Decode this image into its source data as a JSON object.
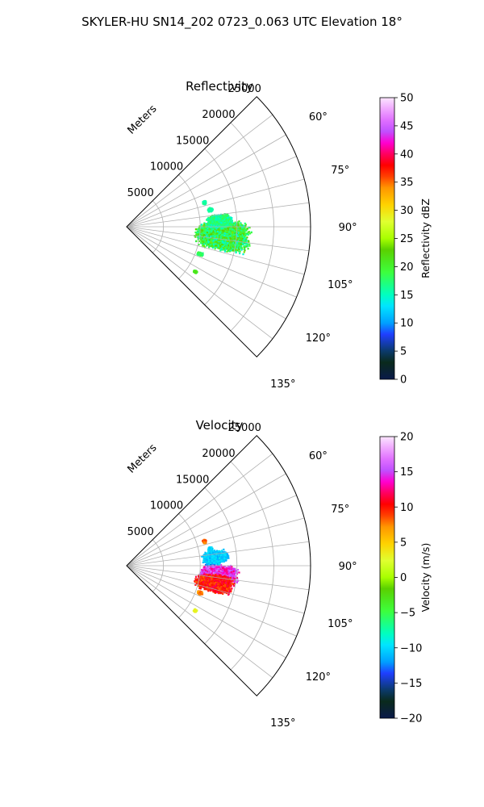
{
  "figure": {
    "suptitle": "SKYLER-HU  SN14_202  0723_0.063 UTC Elevation 18°"
  },
  "chart_data": [
    {
      "type": "polar_radar_sector",
      "title": "Reflectivity",
      "field": "reflectivity",
      "theta_range_deg": [
        45,
        135
      ],
      "radius_max_m": 25000,
      "theta_ticks_deg": [
        60,
        75,
        90,
        105,
        120,
        135
      ],
      "theta_tick_labels": [
        "60°",
        "75°",
        "90°",
        "105°",
        "120°",
        "135°"
      ],
      "r_ticks_m": [
        5000,
        10000,
        15000,
        20000,
        25000
      ],
      "r_tick_labels": [
        "5000",
        "10000",
        "15000",
        "20000",
        "25000"
      ],
      "r_axis_label": "Meters",
      "grid": true,
      "colorbar": {
        "label": "Reflectivity dBZ",
        "vmin": 0,
        "vmax": 50,
        "ticks": [
          0,
          5,
          10,
          15,
          20,
          25,
          30,
          35,
          40,
          45,
          50
        ],
        "tick_labels": [
          "0",
          "5",
          "10",
          "15",
          "20",
          "25",
          "30",
          "35",
          "40",
          "45",
          "50"
        ]
      },
      "echo_regions": [
        {
          "theta_deg": 95,
          "theta_span_deg": 12,
          "r_m": 13000,
          "r_span_m": 5000,
          "value_min": 14,
          "value_max": 24
        },
        {
          "theta_deg": 86,
          "theta_span_deg": 6,
          "r_m": 12500,
          "r_span_m": 2500,
          "value_min": 14,
          "value_max": 19
        },
        {
          "theta_deg": 78,
          "theta_span_deg": 2,
          "r_m": 11500,
          "r_span_m": 500,
          "value_min": 15,
          "value_max": 17
        },
        {
          "theta_deg": 72,
          "theta_span_deg": 2,
          "r_m": 11000,
          "r_span_m": 400,
          "value_min": 15,
          "value_max": 17
        },
        {
          "theta_deg": 110,
          "theta_span_deg": 2,
          "r_m": 10500,
          "r_span_m": 600,
          "value_min": 16,
          "value_max": 20
        },
        {
          "theta_deg": 123,
          "theta_span_deg": 1.5,
          "r_m": 11000,
          "r_span_m": 400,
          "value_min": 18,
          "value_max": 22
        }
      ]
    },
    {
      "type": "polar_radar_sector",
      "title": "Velocity",
      "field": "velocity",
      "theta_range_deg": [
        45,
        135
      ],
      "radius_max_m": 25000,
      "theta_ticks_deg": [
        60,
        75,
        90,
        105,
        120,
        135
      ],
      "theta_tick_labels": [
        "60°",
        "75°",
        "90°",
        "105°",
        "120°",
        "135°"
      ],
      "r_ticks_m": [
        5000,
        10000,
        15000,
        20000,
        25000
      ],
      "r_tick_labels": [
        "5000",
        "10000",
        "15000",
        "20000",
        "25000"
      ],
      "r_axis_label": "Meters",
      "grid": true,
      "colorbar": {
        "label": "Velocity (m/s)",
        "vmin": -20,
        "vmax": 20,
        "ticks": [
          -20,
          -15,
          -10,
          -5,
          0,
          5,
          10,
          15,
          20
        ],
        "tick_labels": [
          "−20",
          "−15",
          "−10",
          "−5",
          "0",
          "5",
          "10",
          "15",
          "20"
        ]
      },
      "echo_regions": [
        {
          "theta_deg": 90,
          "theta_span_deg": 4,
          "r_m": 11500,
          "r_span_m": 1200,
          "value_min": -15,
          "value_max": -11
        },
        {
          "theta_deg": 95,
          "theta_span_deg": 8,
          "r_m": 12500,
          "r_span_m": 3500,
          "value_min": 12,
          "value_max": 17
        },
        {
          "theta_deg": 101,
          "theta_span_deg": 8,
          "r_m": 12000,
          "r_span_m": 3500,
          "value_min": 8,
          "value_max": 12
        },
        {
          "theta_deg": 84,
          "theta_span_deg": 6,
          "r_m": 12000,
          "r_span_m": 2500,
          "value_min": -12,
          "value_max": -9
        },
        {
          "theta_deg": 72,
          "theta_span_deg": 2,
          "r_m": 11000,
          "r_span_m": 400,
          "value_min": 7,
          "value_max": 9
        },
        {
          "theta_deg": 78,
          "theta_span_deg": 2,
          "r_m": 11500,
          "r_span_m": 500,
          "value_min": -11,
          "value_max": -9
        },
        {
          "theta_deg": 110,
          "theta_span_deg": 2,
          "r_m": 10500,
          "r_span_m": 600,
          "value_min": 6,
          "value_max": 9
        },
        {
          "theta_deg": 123,
          "theta_span_deg": 1.5,
          "r_m": 11000,
          "r_span_m": 400,
          "value_min": 2,
          "value_max": 4
        }
      ]
    }
  ]
}
